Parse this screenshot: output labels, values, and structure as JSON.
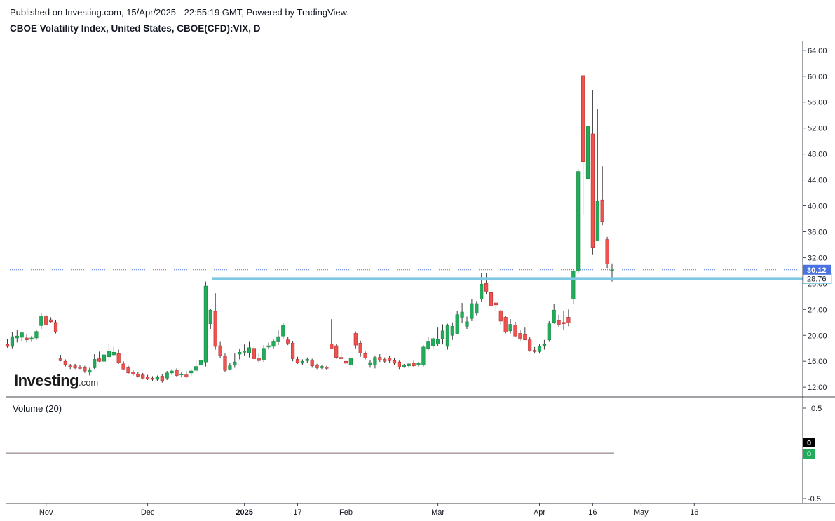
{
  "header": {
    "published_line": "Published on Investing.com, 15/Apr/2025 - 22:55:19 GMT, Powered by TradingView.",
    "symbol_line": "CBOE Volatility Index, United States, CBOE(CFD):VIX, D"
  },
  "logo": {
    "brand": "Investing",
    "suffix": ".com"
  },
  "volume_pane": {
    "label": "Volume (20)",
    "axis_ticks": [
      "0.5",
      "0",
      "-0.5"
    ],
    "badge_black": "0",
    "badge_green": "0"
  },
  "colors": {
    "up": "#26a69a",
    "up_fill": "#22ab5b",
    "down": "#ef5350",
    "hline": "#7ec8e3",
    "last_price_badge": "#4a72e0",
    "grid": "#e0e3eb",
    "axis_text": "#131722"
  },
  "chart_data": {
    "type": "candlestick",
    "title": "CBOE Volatility Index, United States, CBOE(CFD):VIX, D",
    "y_range": [
      10.5,
      65.5
    ],
    "y_ticks": [
      "64.00",
      "60.00",
      "56.00",
      "52.00",
      "48.00",
      "44.00",
      "40.00",
      "36.00",
      "32.00",
      "28.00",
      "24.00",
      "20.00",
      "16.00",
      "12.00"
    ],
    "x_tick_labels": [
      {
        "label": "Nov",
        "index": 8
      },
      {
        "label": "Dec",
        "index": 29
      },
      {
        "label": "2025",
        "index": 49
      },
      {
        "label": "17",
        "index": 60
      },
      {
        "label": "Feb",
        "index": 70
      },
      {
        "label": "Mar",
        "index": 89
      },
      {
        "label": "Apr",
        "index": 110
      },
      {
        "label": "16",
        "index": 121
      },
      {
        "label": "May",
        "index": 131
      },
      {
        "label": "16",
        "index": 142
      }
    ],
    "last_price": "30.12",
    "horizontal_line": {
      "value": 28.76,
      "label": "28.76"
    },
    "candles": [
      {
        "o": 18.6,
        "h": 19.4,
        "l": 18.1,
        "c": 18.3
      },
      {
        "o": 18.3,
        "h": 20.5,
        "l": 18.0,
        "c": 19.8
      },
      {
        "o": 19.6,
        "h": 20.8,
        "l": 18.9,
        "c": 19.9
      },
      {
        "o": 19.7,
        "h": 20.6,
        "l": 19.0,
        "c": 20.4
      },
      {
        "o": 19.6,
        "h": 20.2,
        "l": 18.9,
        "c": 19.3
      },
      {
        "o": 19.4,
        "h": 19.9,
        "l": 19.0,
        "c": 19.6
      },
      {
        "o": 19.6,
        "h": 20.8,
        "l": 19.3,
        "c": 20.6
      },
      {
        "o": 21.5,
        "h": 23.5,
        "l": 21.0,
        "c": 23.0
      },
      {
        "o": 22.9,
        "h": 23.2,
        "l": 21.5,
        "c": 21.6
      },
      {
        "o": 22.4,
        "h": 22.8,
        "l": 22.0,
        "c": 22.1
      },
      {
        "o": 22.0,
        "h": 22.4,
        "l": 20.3,
        "c": 20.5
      },
      {
        "o": 16.4,
        "h": 17.0,
        "l": 16.0,
        "c": 16.1
      },
      {
        "o": 16.0,
        "h": 16.3,
        "l": 15.2,
        "c": 15.5
      },
      {
        "o": 15.3,
        "h": 15.6,
        "l": 14.8,
        "c": 15.1
      },
      {
        "o": 15.3,
        "h": 15.6,
        "l": 14.8,
        "c": 15.0
      },
      {
        "o": 15.1,
        "h": 15.4,
        "l": 14.8,
        "c": 14.9
      },
      {
        "o": 15.0,
        "h": 15.3,
        "l": 14.2,
        "c": 14.5
      },
      {
        "o": 14.3,
        "h": 15.0,
        "l": 13.8,
        "c": 14.7
      },
      {
        "o": 15.0,
        "h": 17.1,
        "l": 14.8,
        "c": 16.3
      },
      {
        "o": 16.4,
        "h": 17.5,
        "l": 15.9,
        "c": 16.0
      },
      {
        "o": 16.0,
        "h": 17.4,
        "l": 15.4,
        "c": 17.0
      },
      {
        "o": 16.7,
        "h": 18.8,
        "l": 16.3,
        "c": 17.6
      },
      {
        "o": 17.0,
        "h": 18.2,
        "l": 16.8,
        "c": 17.4
      },
      {
        "o": 17.2,
        "h": 17.8,
        "l": 15.6,
        "c": 15.8
      },
      {
        "o": 15.6,
        "h": 16.0,
        "l": 14.6,
        "c": 14.8
      },
      {
        "o": 15.0,
        "h": 15.3,
        "l": 14.1,
        "c": 14.2
      },
      {
        "o": 14.3,
        "h": 14.6,
        "l": 13.8,
        "c": 14.0
      },
      {
        "o": 14.0,
        "h": 14.3,
        "l": 13.5,
        "c": 13.7
      },
      {
        "o": 13.9,
        "h": 14.2,
        "l": 13.2,
        "c": 13.4
      },
      {
        "o": 13.6,
        "h": 13.9,
        "l": 13.1,
        "c": 13.3
      },
      {
        "o": 13.4,
        "h": 13.7,
        "l": 12.9,
        "c": 13.2
      },
      {
        "o": 13.2,
        "h": 13.8,
        "l": 12.9,
        "c": 13.5
      },
      {
        "o": 13.7,
        "h": 14.0,
        "l": 12.7,
        "c": 13.0
      },
      {
        "o": 13.4,
        "h": 14.5,
        "l": 13.1,
        "c": 14.2
      },
      {
        "o": 14.2,
        "h": 14.8,
        "l": 13.9,
        "c": 14.5
      },
      {
        "o": 14.6,
        "h": 14.9,
        "l": 13.6,
        "c": 13.8
      },
      {
        "o": 13.9,
        "h": 14.3,
        "l": 13.5,
        "c": 14.0
      },
      {
        "o": 13.9,
        "h": 14.5,
        "l": 13.4,
        "c": 13.6
      },
      {
        "o": 14.2,
        "h": 14.8,
        "l": 13.8,
        "c": 14.5
      },
      {
        "o": 14.6,
        "h": 16.2,
        "l": 14.3,
        "c": 15.2
      },
      {
        "o": 15.4,
        "h": 16.3,
        "l": 15.0,
        "c": 16.2
      },
      {
        "o": 15.9,
        "h": 28.3,
        "l": 15.2,
        "c": 27.6
      },
      {
        "o": 21.8,
        "h": 24.1,
        "l": 21.0,
        "c": 23.9
      },
      {
        "o": 23.7,
        "h": 26.5,
        "l": 17.8,
        "c": 18.3
      },
      {
        "o": 18.4,
        "h": 19.0,
        "l": 16.5,
        "c": 16.9
      },
      {
        "o": 16.8,
        "h": 17.2,
        "l": 14.3,
        "c": 14.6
      },
      {
        "o": 14.8,
        "h": 15.7,
        "l": 14.6,
        "c": 15.3
      },
      {
        "o": 15.4,
        "h": 17.2,
        "l": 15.0,
        "c": 15.9
      },
      {
        "o": 17.1,
        "h": 17.9,
        "l": 16.3,
        "c": 17.4
      },
      {
        "o": 17.4,
        "h": 18.6,
        "l": 16.9,
        "c": 17.6
      },
      {
        "o": 17.3,
        "h": 19.0,
        "l": 16.6,
        "c": 18.1
      },
      {
        "o": 18.0,
        "h": 18.4,
        "l": 16.2,
        "c": 16.4
      },
      {
        "o": 16.5,
        "h": 17.3,
        "l": 15.8,
        "c": 16.1
      },
      {
        "o": 16.2,
        "h": 18.5,
        "l": 15.9,
        "c": 18.0
      },
      {
        "o": 18.2,
        "h": 18.9,
        "l": 17.8,
        "c": 18.4
      },
      {
        "o": 18.3,
        "h": 19.4,
        "l": 17.9,
        "c": 19.0
      },
      {
        "o": 19.0,
        "h": 20.8,
        "l": 18.5,
        "c": 19.8
      },
      {
        "o": 19.9,
        "h": 22.0,
        "l": 19.5,
        "c": 21.6
      },
      {
        "o": 19.3,
        "h": 19.8,
        "l": 18.5,
        "c": 18.8
      },
      {
        "o": 18.8,
        "h": 19.1,
        "l": 16.0,
        "c": 16.4
      },
      {
        "o": 16.3,
        "h": 16.7,
        "l": 15.6,
        "c": 15.8
      },
      {
        "o": 15.7,
        "h": 16.3,
        "l": 15.4,
        "c": 16.0
      },
      {
        "o": 16.1,
        "h": 16.6,
        "l": 15.8,
        "c": 16.3
      },
      {
        "o": 16.2,
        "h": 16.4,
        "l": 15.0,
        "c": 15.3
      },
      {
        "o": 15.4,
        "h": 15.6,
        "l": 14.8,
        "c": 15.0
      },
      {
        "o": 15.0,
        "h": 15.4,
        "l": 14.8,
        "c": 15.2
      },
      {
        "o": 15.1,
        "h": 15.3,
        "l": 14.7,
        "c": 14.9
      },
      {
        "o": 18.7,
        "h": 22.5,
        "l": 17.9,
        "c": 17.9
      },
      {
        "o": 18.4,
        "h": 18.6,
        "l": 16.4,
        "c": 16.6
      },
      {
        "o": 16.6,
        "h": 17.5,
        "l": 16.3,
        "c": 16.4
      },
      {
        "o": 16.0,
        "h": 16.4,
        "l": 15.5,
        "c": 15.7
      },
      {
        "o": 15.4,
        "h": 16.6,
        "l": 14.8,
        "c": 16.5
      },
      {
        "o": 20.3,
        "h": 20.6,
        "l": 18.0,
        "c": 18.5
      },
      {
        "o": 18.8,
        "h": 19.2,
        "l": 16.7,
        "c": 17.3
      },
      {
        "o": 17.2,
        "h": 17.5,
        "l": 16.3,
        "c": 16.5
      },
      {
        "o": 15.5,
        "h": 16.2,
        "l": 15.0,
        "c": 15.8
      },
      {
        "o": 15.4,
        "h": 16.9,
        "l": 14.9,
        "c": 16.6
      },
      {
        "o": 16.6,
        "h": 17.1,
        "l": 15.9,
        "c": 16.2
      },
      {
        "o": 16.3,
        "h": 16.6,
        "l": 15.7,
        "c": 16.0
      },
      {
        "o": 16.5,
        "h": 16.9,
        "l": 15.8,
        "c": 16.1
      },
      {
        "o": 16.1,
        "h": 16.5,
        "l": 15.4,
        "c": 15.7
      },
      {
        "o": 15.9,
        "h": 16.1,
        "l": 14.8,
        "c": 15.1
      },
      {
        "o": 15.2,
        "h": 15.6,
        "l": 15.0,
        "c": 15.4
      },
      {
        "o": 15.3,
        "h": 15.8,
        "l": 15.0,
        "c": 15.6
      },
      {
        "o": 15.7,
        "h": 16.1,
        "l": 15.1,
        "c": 15.3
      },
      {
        "o": 15.4,
        "h": 15.9,
        "l": 15.2,
        "c": 15.7
      },
      {
        "o": 15.4,
        "h": 18.5,
        "l": 15.2,
        "c": 18.2
      },
      {
        "o": 18.0,
        "h": 19.8,
        "l": 17.7,
        "c": 19.0
      },
      {
        "o": 18.4,
        "h": 19.7,
        "l": 18.0,
        "c": 19.5
      },
      {
        "o": 18.7,
        "h": 21.2,
        "l": 18.3,
        "c": 19.4
      },
      {
        "o": 19.5,
        "h": 21.7,
        "l": 18.6,
        "c": 20.7
      },
      {
        "o": 18.3,
        "h": 21.8,
        "l": 17.8,
        "c": 21.5
      },
      {
        "o": 20.0,
        "h": 22.0,
        "l": 19.3,
        "c": 21.4
      },
      {
        "o": 20.3,
        "h": 23.8,
        "l": 20.2,
        "c": 23.2
      },
      {
        "o": 22.8,
        "h": 25.0,
        "l": 21.9,
        "c": 23.6
      },
      {
        "o": 21.4,
        "h": 22.9,
        "l": 21.0,
        "c": 22.1
      },
      {
        "o": 22.6,
        "h": 25.6,
        "l": 22.2,
        "c": 24.9
      },
      {
        "o": 23.4,
        "h": 25.3,
        "l": 23.1,
        "c": 24.9
      },
      {
        "o": 25.6,
        "h": 29.6,
        "l": 25.2,
        "c": 27.9
      },
      {
        "o": 28.0,
        "h": 29.6,
        "l": 26.4,
        "c": 26.8
      },
      {
        "o": 26.6,
        "h": 27.0,
        "l": 24.2,
        "c": 24.5
      },
      {
        "o": 25.0,
        "h": 25.3,
        "l": 23.8,
        "c": 24.7
      },
      {
        "o": 23.8,
        "h": 24.0,
        "l": 21.6,
        "c": 22.2
      },
      {
        "o": 22.8,
        "h": 23.0,
        "l": 20.3,
        "c": 20.5
      },
      {
        "o": 20.7,
        "h": 22.5,
        "l": 20.3,
        "c": 21.7
      },
      {
        "o": 21.6,
        "h": 22.1,
        "l": 19.7,
        "c": 19.9
      },
      {
        "o": 20.3,
        "h": 20.9,
        "l": 19.2,
        "c": 19.4
      },
      {
        "o": 20.1,
        "h": 21.2,
        "l": 19.4,
        "c": 19.3
      },
      {
        "o": 19.3,
        "h": 19.7,
        "l": 17.5,
        "c": 17.7
      },
      {
        "o": 17.7,
        "h": 18.2,
        "l": 17.2,
        "c": 17.5
      },
      {
        "o": 17.5,
        "h": 18.6,
        "l": 17.2,
        "c": 18.3
      },
      {
        "o": 18.4,
        "h": 19.3,
        "l": 17.8,
        "c": 18.6
      },
      {
        "o": 19.3,
        "h": 22.2,
        "l": 19.0,
        "c": 21.8
      },
      {
        "o": 22.0,
        "h": 24.8,
        "l": 21.8,
        "c": 23.9
      },
      {
        "o": 22.3,
        "h": 23.2,
        "l": 21.3,
        "c": 21.7
      },
      {
        "o": 22.0,
        "h": 23.8,
        "l": 20.8,
        "c": 21.8
      },
      {
        "o": 22.8,
        "h": 24.0,
        "l": 21.4,
        "c": 21.9
      },
      {
        "o": 25.6,
        "h": 30.2,
        "l": 24.9,
        "c": 29.9
      },
      {
        "o": 29.9,
        "h": 45.7,
        "l": 29.5,
        "c": 45.3
      },
      {
        "o": 60.1,
        "h": 60.1,
        "l": 38.6,
        "c": 46.8
      },
      {
        "o": 44.2,
        "h": 60.0,
        "l": 36.8,
        "c": 52.3
      },
      {
        "o": 51.1,
        "h": 57.9,
        "l": 32.5,
        "c": 33.6
      },
      {
        "o": 34.6,
        "h": 54.9,
        "l": 34.6,
        "c": 40.7
      },
      {
        "o": 40.9,
        "h": 46.1,
        "l": 37.0,
        "c": 37.6
      },
      {
        "o": 34.8,
        "h": 35.2,
        "l": 30.4,
        "c": 31.0
      },
      {
        "o": 30.1,
        "h": 31.1,
        "l": 28.3,
        "c": 30.1
      }
    ]
  }
}
